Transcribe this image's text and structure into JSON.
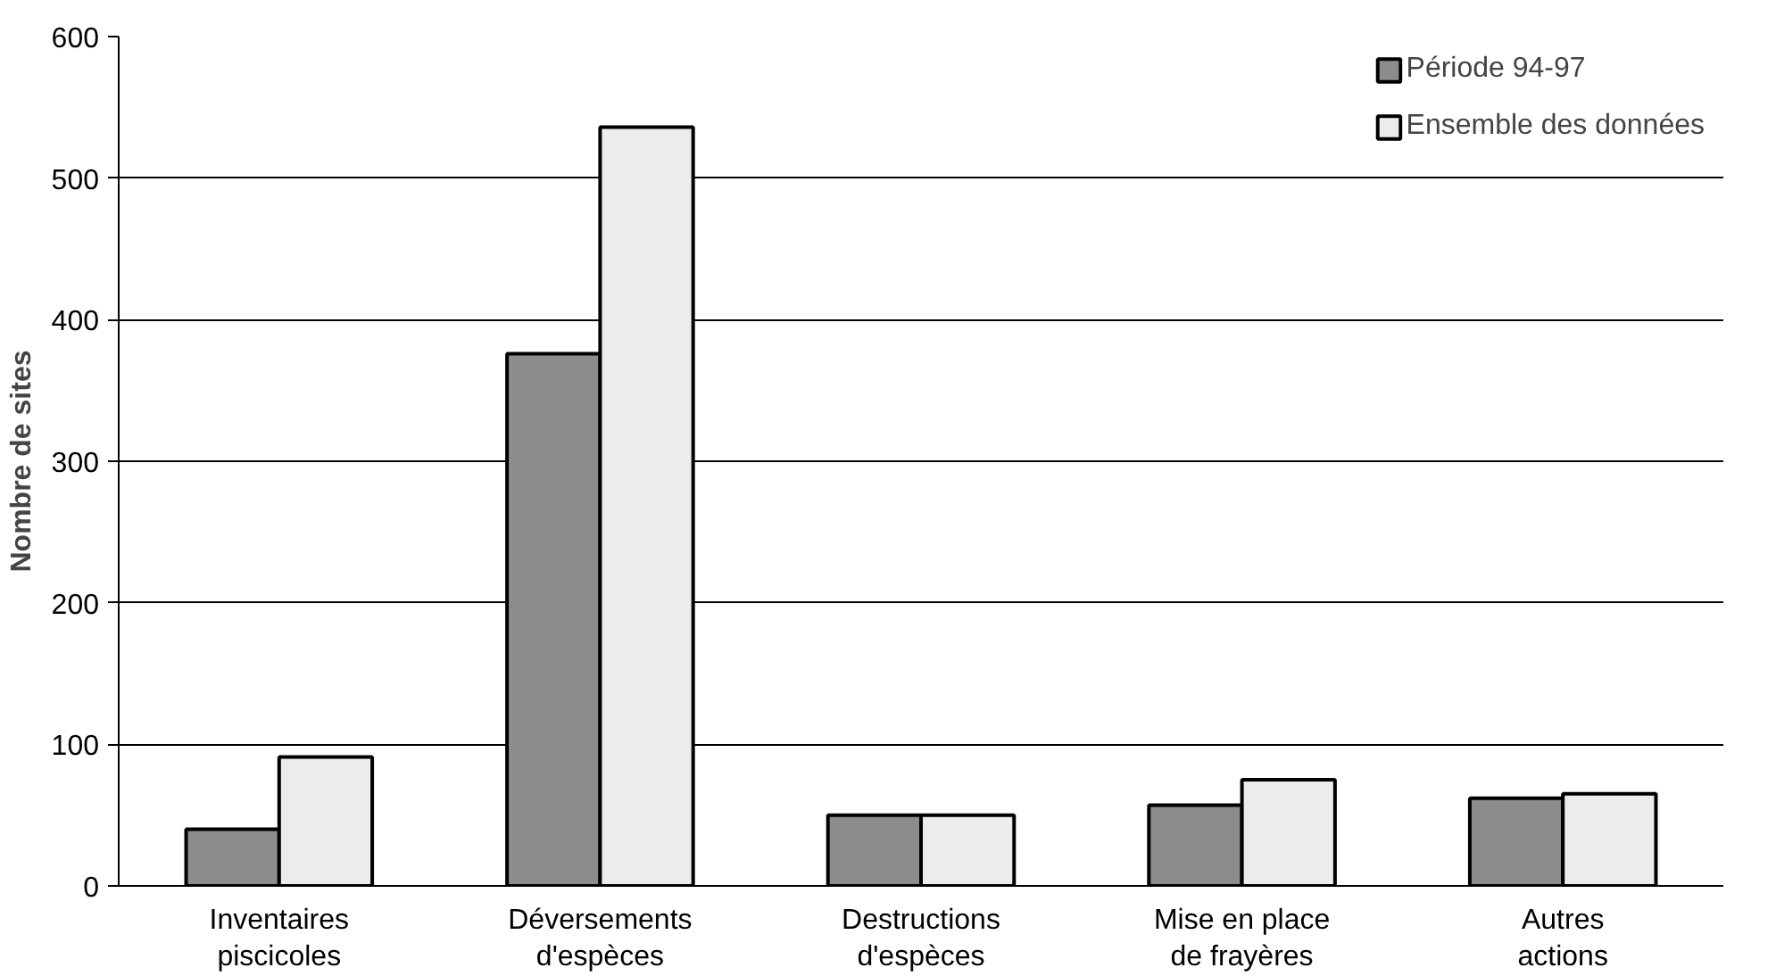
{
  "chart_data": {
    "type": "bar",
    "ylabel": "Nombre de sites",
    "categories": [
      "Inventaires\npiscicoles",
      "Déversements\nd'espèces",
      "Destructions\nd'espèces",
      "Mise en place\nde frayères",
      "Autres\nactions"
    ],
    "series": [
      {
        "name": "Période 94-97",
        "color": "#8c8c8c",
        "values": [
          40,
          376,
          50,
          57,
          62
        ]
      },
      {
        "name": "Ensemble des données",
        "color": "#ececec",
        "values": [
          91,
          536,
          50,
          75,
          65
        ]
      }
    ],
    "ylim": [
      0,
      600
    ],
    "yticks": [
      0,
      100,
      200,
      300,
      400,
      500,
      600
    ],
    "grid": "y",
    "legend": "top right"
  }
}
